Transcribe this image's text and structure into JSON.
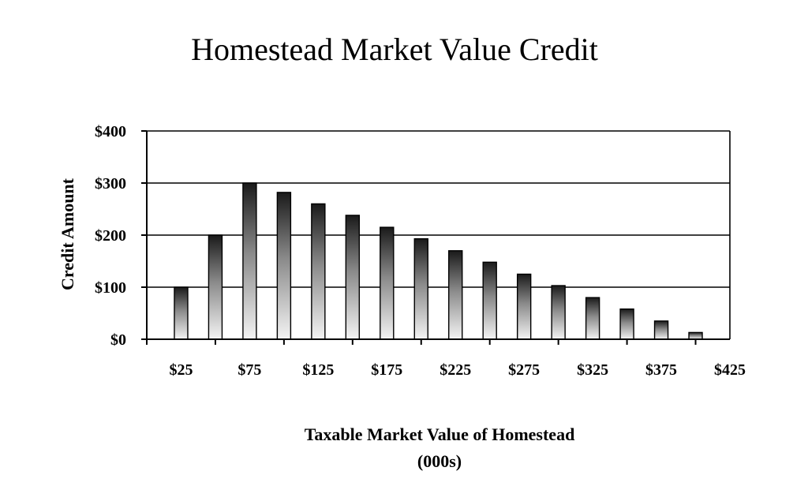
{
  "chart_data": {
    "type": "bar",
    "title": "Homestead Market Value Credit",
    "ylabel": "Credit Amount",
    "xlabel_line1": "Taxable Market Value of Homestead",
    "xlabel_line2": "(000s)",
    "ylim": [
      0,
      400
    ],
    "y_ticks": [
      "$0",
      "$100",
      "$200",
      "$300",
      "$400"
    ],
    "x_tick_labels": [
      "$25",
      "$75",
      "$125",
      "$175",
      "$225",
      "$275",
      "$325",
      "$375",
      "$425"
    ],
    "categories": [
      25,
      50,
      75,
      100,
      125,
      150,
      175,
      200,
      225,
      250,
      275,
      300,
      325,
      350,
      375,
      400
    ],
    "values": [
      100,
      200,
      300,
      282,
      260,
      238,
      215,
      193,
      170,
      148,
      125,
      103,
      80,
      58,
      35,
      13
    ],
    "grid": true,
    "legend": "none",
    "colors": {
      "bar_dark": "#1a1a1a",
      "bar_light": "#f4f4f4",
      "axis": "#000000",
      "grid": "#000000"
    }
  }
}
